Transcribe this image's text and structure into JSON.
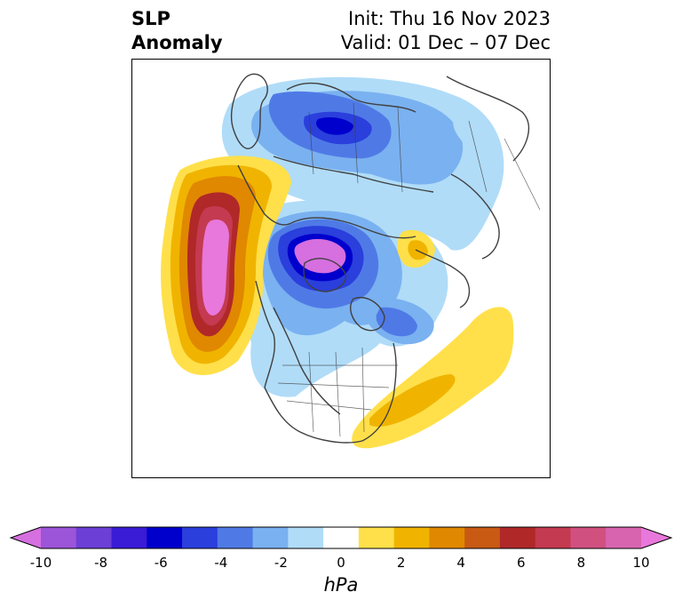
{
  "header": {
    "title_line1": "SLP",
    "title_line2": "Anomaly",
    "init": "Init: Thu 16 Nov 2023",
    "valid": "Valid: 01 Dec – 07 Dec"
  },
  "colorbar": {
    "unit": "hPa",
    "ticks": [
      "-10",
      "-8",
      "-6",
      "-4",
      "-2",
      "0",
      "2",
      "4",
      "6",
      "8",
      "10"
    ],
    "colors": [
      "#d66fe0",
      "#9c54d8",
      "#6c3fd6",
      "#3a1bd6",
      "#0000cc",
      "#2a3fdc",
      "#4f7ae6",
      "#7ab1f0",
      "#b0dcf8",
      "#ffffff",
      "#ffe04a",
      "#f0b400",
      "#e08800",
      "#c85a14",
      "#b02828",
      "#c43a50",
      "#d05080",
      "#d864b0",
      "#e878dc"
    ]
  },
  "palette": {
    "land_outline": "#404040",
    "neg_light": "#b0dcf8",
    "neg_mid": "#7ab1f0",
    "neg_blue": "#4f7ae6",
    "neg_deep": "#2a3fdc",
    "neg_navy": "#0000cc",
    "neg_violet": "#6c3fd6",
    "neg_purple": "#9c54d8",
    "neg_core": "#d66fe0",
    "pos_yellow": "#ffe04a",
    "pos_gold": "#f0b400",
    "pos_orange": "#e08800",
    "pos_red": "#b02828",
    "pos_rose": "#c43a50",
    "pos_pink": "#d864b0",
    "pos_core": "#e878dc"
  }
}
